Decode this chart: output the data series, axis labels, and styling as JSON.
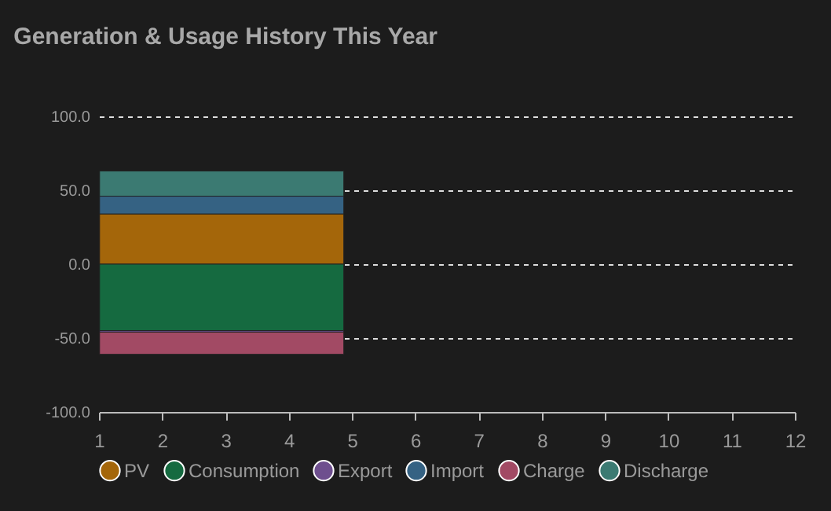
{
  "chart_data": {
    "type": "bar",
    "title": "Generation & Usage History This Year",
    "x": [
      2.94
    ],
    "stacked": true,
    "series": [
      {
        "name": "PV",
        "color": "#a4660a",
        "values": [
          34
        ]
      },
      {
        "name": "Consumption",
        "color": "#156a40",
        "values": [
          -45
        ]
      },
      {
        "name": "Export",
        "color": "#6e4f8e",
        "values": [
          -1
        ]
      },
      {
        "name": "Import",
        "color": "#356283",
        "values": [
          12
        ]
      },
      {
        "name": "Charge",
        "color": "#a24a64",
        "values": [
          -15
        ]
      },
      {
        "name": "Discharge",
        "color": "#3b7a72",
        "values": [
          17
        ]
      }
    ],
    "xlim": [
      1,
      12
    ],
    "xticks": [
      1,
      2,
      3,
      4,
      5,
      6,
      7,
      8,
      9,
      10,
      11,
      12
    ],
    "ylim": [
      -100,
      100
    ],
    "yticks": [
      {
        "value": -100,
        "label": "-100.0"
      },
      {
        "value": -50,
        "label": "-50.0"
      },
      {
        "value": 0,
        "label": "0.0"
      },
      {
        "value": 50,
        "label": "50.0"
      },
      {
        "value": 100,
        "label": "100.0"
      }
    ],
    "grid": "y",
    "legend": "bottom"
  }
}
